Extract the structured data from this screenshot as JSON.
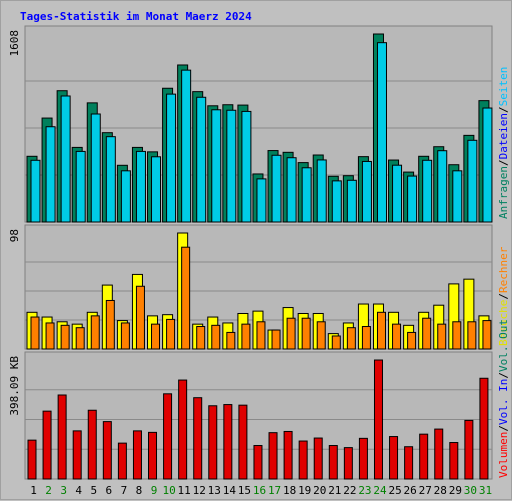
{
  "title": "Tages-Statistik im Monat Maerz 2024",
  "colors": {
    "background": "#c0c0c0",
    "plot_bg": "#b8b8b8",
    "grid": "#8a8a8a",
    "anfragen": "#00805c",
    "dateien": "#00cce6",
    "seiten": "#00c8d4",
    "besuche": "#ffff00",
    "rechner": "#ff8000",
    "vol_out": "#ff8000",
    "vol_in": "#ff0000",
    "volumen": "#e00000",
    "weekend_label": "#008000",
    "weekday_label": "#000000",
    "title": "#0000ff"
  },
  "legend": {
    "top": [
      {
        "text": "Anfragen",
        "color": "#008060"
      },
      {
        "text": "/",
        "color": "#000000"
      },
      {
        "text": "Dateien",
        "color": "#0000ff"
      },
      {
        "text": "/",
        "color": "#000000"
      },
      {
        "text": "Seiten",
        "color": "#00c0ff"
      }
    ],
    "middle": [
      {
        "text": "Besuche",
        "color": "#e0e000"
      },
      {
        "text": "/",
        "color": "#000000"
      },
      {
        "text": "Rechner",
        "color": "#ff8000"
      }
    ],
    "bottom": [
      {
        "text": "Volumen",
        "color": "#ff0000"
      },
      {
        "text": "/",
        "color": "#000000"
      },
      {
        "text": "Vol. In",
        "color": "#0000ff"
      },
      {
        "text": "/",
        "color": "#000000"
      },
      {
        "text": "Vol. Out",
        "color": "#008060"
      }
    ]
  },
  "chart_data": [
    {
      "type": "bar",
      "panel": "hits",
      "max_label": "1608",
      "ylim": [
        0,
        1608
      ],
      "categories": [
        "1",
        "2",
        "3",
        "4",
        "5",
        "6",
        "7",
        "8",
        "9",
        "10",
        "11",
        "12",
        "13",
        "14",
        "15",
        "16",
        "17",
        "18",
        "19",
        "20",
        "21",
        "22",
        "23",
        "24",
        "25",
        "26",
        "27",
        "28",
        "29",
        "30",
        "31"
      ],
      "weekend": [
        2,
        3,
        9,
        10,
        16,
        17,
        23,
        24,
        30,
        31
      ],
      "series": [
        {
          "name": "Anfragen",
          "values": [
            562,
            889,
            1123,
            638,
            1019,
            764,
            485,
            638,
            600,
            1144,
            1343,
            1115,
            994,
            1003,
            1000,
            411,
            611,
            596,
            508,
            573,
            391,
            396,
            559,
            1608,
            530,
            427,
            562,
            644,
            490,
            741,
            1038
          ]
        },
        {
          "name": "Dateien",
          "values": [
            562,
            849,
            1112,
            638,
            958,
            764,
            472,
            638,
            592,
            1128,
            1333,
            1101,
            994,
            990,
            980,
            403,
            605,
            584,
            498,
            565,
            386,
            391,
            552,
            1568,
            520,
            427,
            562,
            644,
            472,
            733,
            1009
          ]
        }
      ]
    },
    {
      "type": "bar",
      "panel": "visits",
      "max_label": "98",
      "ylim": [
        0,
        98
      ],
      "categories": [
        "1",
        "2",
        "3",
        "4",
        "5",
        "6",
        "7",
        "8",
        "9",
        "10",
        "11",
        "12",
        "13",
        "14",
        "15",
        "16",
        "17",
        "18",
        "19",
        "20",
        "21",
        "22",
        "23",
        "24",
        "25",
        "26",
        "27",
        "28",
        "29",
        "30",
        "31"
      ],
      "series": [
        {
          "name": "Besuche",
          "values": [
            31,
            27,
            23,
            21,
            31,
            54,
            24,
            63,
            28,
            29,
            98,
            21,
            27,
            22,
            30,
            32,
            16,
            35,
            30,
            30,
            13,
            22,
            38,
            38,
            31,
            20,
            31,
            37,
            55,
            59,
            28
          ]
        },
        {
          "name": "Rechner",
          "values": [
            27,
            22,
            20,
            18,
            28,
            41,
            22,
            53,
            21,
            25,
            86,
            19,
            20,
            14,
            21,
            23,
            16,
            26,
            26,
            23,
            11,
            18,
            19,
            31,
            21,
            14,
            26,
            21,
            23,
            23,
            24
          ]
        }
      ]
    },
    {
      "type": "bar",
      "panel": "volume",
      "max_label": "398.09 KB",
      "ylim": [
        0,
        398.09
      ],
      "categories": [
        "1",
        "2",
        "3",
        "4",
        "5",
        "6",
        "7",
        "8",
        "9",
        "10",
        "11",
        "12",
        "13",
        "14",
        "15",
        "16",
        "17",
        "18",
        "19",
        "20",
        "21",
        "22",
        "23",
        "24",
        "25",
        "26",
        "27",
        "28",
        "29",
        "30",
        "31"
      ],
      "series": [
        {
          "name": "Volumen",
          "values": [
            130,
            227,
            281,
            161,
            230,
            192,
            120,
            161,
            156,
            285,
            331,
            272,
            245,
            249,
            247,
            112,
            155,
            159,
            127,
            137,
            112,
            105,
            136,
            398,
            142,
            108,
            150,
            167,
            122,
            196,
            337
          ]
        }
      ]
    }
  ]
}
